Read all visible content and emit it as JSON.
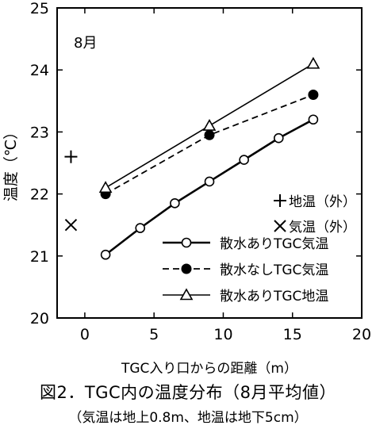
{
  "chart_data": {
    "type": "line",
    "panel_label": "8月",
    "xlabel": "TGC入り口からの距離（m）",
    "ylabel": "温度（℃）",
    "xlim": [
      -2,
      20
    ],
    "ylim": [
      20,
      25
    ],
    "x_ticks": [
      0,
      5,
      10,
      15,
      20
    ],
    "y_ticks": [
      20,
      21,
      22,
      23,
      24,
      25
    ],
    "grid": false,
    "legend_position": "bottom-right",
    "series": [
      {
        "name": "散水ありTGC気温",
        "marker": "open-circle",
        "line": "solid-thick",
        "x": [
          1.5,
          4.0,
          6.5,
          9.0,
          11.5,
          14.0,
          16.5
        ],
        "y": [
          21.02,
          21.45,
          21.85,
          22.2,
          22.55,
          22.9,
          23.2
        ]
      },
      {
        "name": "散水なしTGC気温",
        "marker": "filled-circle",
        "line": "dashed",
        "x": [
          1.5,
          9.0,
          16.5
        ],
        "y": [
          22.0,
          22.95,
          23.6
        ]
      },
      {
        "name": "散水ありTGC地温",
        "marker": "open-triangle",
        "line": "solid",
        "x": [
          1.5,
          9.0,
          16.5
        ],
        "y": [
          22.1,
          23.1,
          24.1
        ]
      },
      {
        "name": "地温（外）",
        "marker": "plus",
        "line": "none",
        "x": [
          -1.0
        ],
        "y": [
          22.6
        ]
      },
      {
        "name": "気温（外）",
        "marker": "cross",
        "line": "none",
        "x": [
          -1.0
        ],
        "y": [
          21.5
        ]
      }
    ]
  },
  "caption": {
    "title": "図2．TGC内の温度分布（8月平均値）",
    "note": "（気温は地上0.8m、地温は地下5cm）"
  }
}
